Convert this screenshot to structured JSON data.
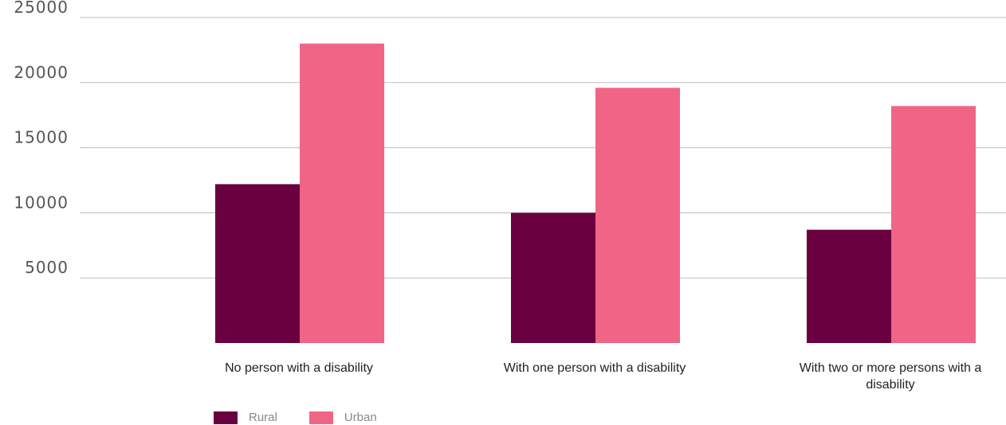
{
  "chart_data": {
    "type": "bar",
    "categories": [
      "No person with a disability",
      "With one person with a disability",
      "With two or more persons with a disability"
    ],
    "series": [
      {
        "name": "Rural",
        "values": [
          12200,
          10000,
          8700
        ],
        "color": "#6a0040"
      },
      {
        "name": "Urban",
        "values": [
          23000,
          19600,
          18200
        ],
        "color": "#f06585"
      }
    ],
    "yticks": [
      5000,
      10000,
      15000,
      20000,
      25000
    ],
    "ylim": [
      0,
      25000
    ],
    "grid": true,
    "legend": "bottom-left",
    "gridline_color": "#bdbdbd"
  }
}
